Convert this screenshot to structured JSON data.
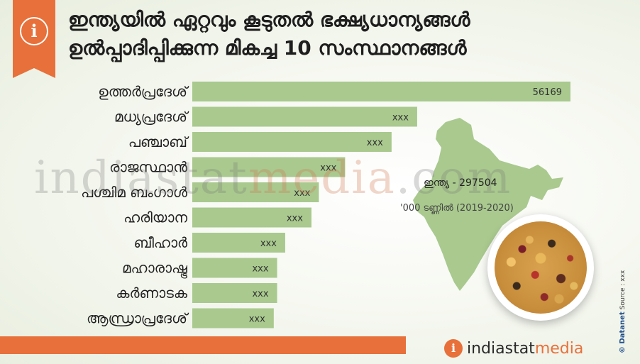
{
  "header": {
    "title_line1": "ഇന്ത്യയിൽ ഏറ്റവും കൂടുതൽ ഭക്ഷ്യധാന്യങ്ങൾ",
    "title_line2": "ഉൽപ്പാദിപ്പിക്കുന്ന മികച്ച 10 സംസ്ഥാനങ്ങൾ",
    "info_icon": "info-icon"
  },
  "chart_data": {
    "type": "bar",
    "orientation": "horizontal",
    "title": "ഇന്ത്യയിൽ ഏറ്റവും കൂടുതൽ ഭക്ഷ്യധാന്യങ്ങൾ ഉൽപ്പാദിപ്പിക്കുന്ന മികച്ച 10 സംസ്ഥാനങ്ങൾ",
    "categories": [
      "ഉത്തർപ്രദേശ്",
      "മധ്യപ്രദേശ്",
      "പഞ്ചാബ്",
      "രാജസ്ഥാൻ",
      "പശ്ചിമ ബംഗാൾ",
      "ഹരിയാന",
      "ബീഹാർ",
      "മഹാരാഷ്ട്ര",
      "കർണാടക",
      "ആന്ധ്രാപ്രദേശ്"
    ],
    "value_labels": [
      "56169",
      "xxx",
      "xxx",
      "xxx",
      "xxx",
      "xxx",
      "xxx",
      "xxx",
      "xxx",
      "xxx"
    ],
    "values": [
      56169,
      33400,
      29600,
      22700,
      18800,
      17700,
      13800,
      12600,
      12600,
      12100
    ],
    "xlim": [
      0,
      56169
    ],
    "unit": "'000 ടണ്ണിൽ (2019-2020)",
    "grid": false,
    "legend": "none",
    "bar_color": "#a9c98e"
  },
  "india": {
    "total_label": "ഇന്ത്യ - 297504",
    "unit_label": "'000 ടണ്ണിൽ (2019-2020)"
  },
  "watermark": {
    "prefix": "indiastat",
    "accent": "media",
    "suffix": ".com"
  },
  "source": {
    "brand": "© Datanet",
    "text": "Source : xxx"
  },
  "footer": {
    "logo_i": "i",
    "logo_text": "indiastat",
    "logo_accent": "media"
  },
  "colors": {
    "accent": "#e8703a",
    "bar": "#a9c98e",
    "map": "#a9c98e"
  }
}
